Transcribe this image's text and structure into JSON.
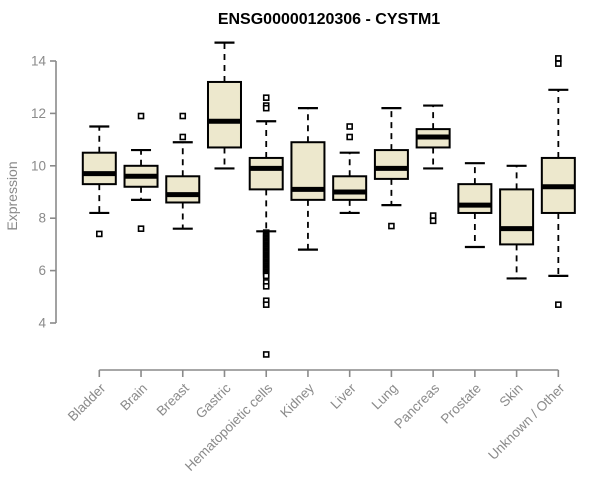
{
  "chart_data": {
    "type": "boxplot",
    "title": "ENSG00000120306 - CYSTM1",
    "xlabel": "",
    "ylabel": "Expression",
    "ylim": [
      4,
      14
    ],
    "yticks": [
      4,
      6,
      8,
      10,
      12,
      14
    ],
    "grid": false,
    "legend": "none",
    "colors": {
      "box_fill": "#ede8cd",
      "box_border": "#000000",
      "median": "#000000",
      "whisker": "#000000",
      "axis": "#8a8a8a",
      "title": "#000000",
      "background": "#ffffff"
    },
    "categories": [
      "Bladder",
      "Brain",
      "Breast",
      "Gastric",
      "Hematopoietic cells",
      "Kidney",
      "Liver",
      "Lung",
      "Pancreas",
      "Prostate",
      "Skin",
      "Unknown / Other"
    ],
    "boxes": [
      {
        "category": "Bladder",
        "whisker_low": 8.2,
        "q1": 9.3,
        "median": 9.7,
        "q3": 10.5,
        "whisker_high": 11.5,
        "outliers": [
          7.4
        ]
      },
      {
        "category": "Brain",
        "whisker_low": 8.7,
        "q1": 9.2,
        "median": 9.6,
        "q3": 10.0,
        "whisker_high": 10.6,
        "outliers": [
          11.9,
          7.6
        ]
      },
      {
        "category": "Breast",
        "whisker_low": 7.6,
        "q1": 8.6,
        "median": 8.9,
        "q3": 9.6,
        "whisker_high": 10.9,
        "outliers": [
          11.9,
          11.1
        ]
      },
      {
        "category": "Gastric",
        "whisker_low": 9.9,
        "q1": 10.7,
        "median": 11.7,
        "q3": 13.2,
        "whisker_high": 14.7,
        "outliers": []
      },
      {
        "category": "Hematopoietic cells",
        "whisker_low": 7.5,
        "q1": 9.1,
        "median": 9.9,
        "q3": 10.3,
        "whisker_high": 11.7,
        "outliers": [
          12.6,
          12.3,
          12.2,
          7.45,
          7.4,
          7.35,
          7.3,
          7.25,
          7.2,
          7.15,
          7.1,
          7.05,
          7.0,
          6.95,
          6.9,
          6.85,
          6.8,
          6.75,
          6.7,
          6.65,
          6.6,
          6.55,
          6.5,
          6.45,
          6.4,
          6.35,
          6.3,
          6.25,
          6.2,
          6.15,
          6.1,
          6.05,
          6.0,
          5.95,
          5.9,
          5.85,
          5.8,
          5.55,
          5.4,
          4.85,
          4.7,
          2.8
        ]
      },
      {
        "category": "Kidney",
        "whisker_low": 6.8,
        "q1": 8.7,
        "median": 9.1,
        "q3": 10.9,
        "whisker_high": 12.2,
        "outliers": []
      },
      {
        "category": "Liver",
        "whisker_low": 8.2,
        "q1": 8.7,
        "median": 9.0,
        "q3": 9.6,
        "whisker_high": 10.5,
        "outliers": [
          11.5,
          11.1
        ]
      },
      {
        "category": "Lung",
        "whisker_low": 8.5,
        "q1": 9.5,
        "median": 9.9,
        "q3": 10.6,
        "whisker_high": 12.2,
        "outliers": [
          7.7
        ]
      },
      {
        "category": "Pancreas",
        "whisker_low": 9.9,
        "q1": 10.7,
        "median": 11.1,
        "q3": 11.4,
        "whisker_high": 12.3,
        "outliers": [
          8.1,
          7.9
        ]
      },
      {
        "category": "Prostate",
        "whisker_low": 6.9,
        "q1": 8.2,
        "median": 8.5,
        "q3": 9.3,
        "whisker_high": 10.1,
        "outliers": []
      },
      {
        "category": "Skin",
        "whisker_low": 5.7,
        "q1": 7.0,
        "median": 7.6,
        "q3": 9.1,
        "whisker_high": 10.0,
        "outliers": []
      },
      {
        "category": "Unknown / Other",
        "whisker_low": 5.8,
        "q1": 8.2,
        "median": 9.2,
        "q3": 10.3,
        "whisker_high": 12.9,
        "outliers": [
          14.1,
          13.9,
          4.7
        ]
      }
    ]
  }
}
